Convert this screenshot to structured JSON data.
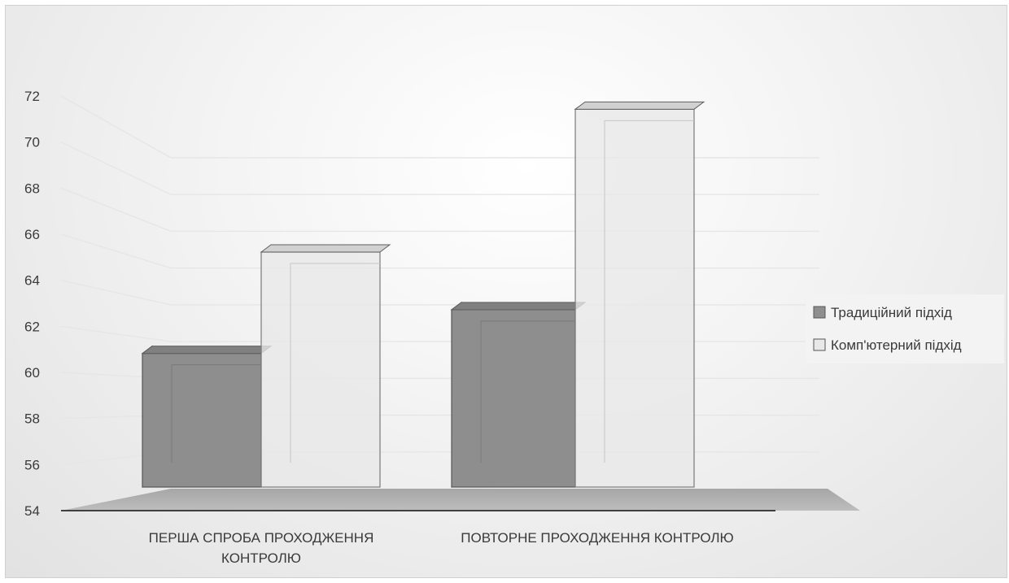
{
  "chart_data": {
    "type": "bar",
    "style": "3d-clustered-column",
    "categories": [
      "ПЕРША СПРОБА ПРОХОДЖЕННЯ КОНТРОЛЮ",
      "ПОВТОРНЕ ПРОХОДЖЕННЯ КОНТРОЛЮ"
    ],
    "category_lines": [
      [
        "ПЕРША СПРОБА ПРОХОДЖЕННЯ",
        "КОНТРОЛЮ"
      ],
      [
        "ПОВТОРНЕ ПРОХОДЖЕННЯ КОНТРОЛЮ"
      ]
    ],
    "series": [
      {
        "name": "Традиційний підхід",
        "values": [
          60.4,
          62.3
        ],
        "color": "#8e8e8e"
      },
      {
        "name": "Комп'ютерний підхід",
        "values": [
          64.8,
          71.0
        ],
        "color": "#e8e8e8"
      }
    ],
    "ylim": [
      54,
      72
    ],
    "yticks": [
      54,
      56,
      58,
      60,
      62,
      64,
      66,
      68,
      70,
      72
    ],
    "grid": true,
    "legend_position": "right",
    "title": "",
    "xlabel": "",
    "ylabel": ""
  }
}
